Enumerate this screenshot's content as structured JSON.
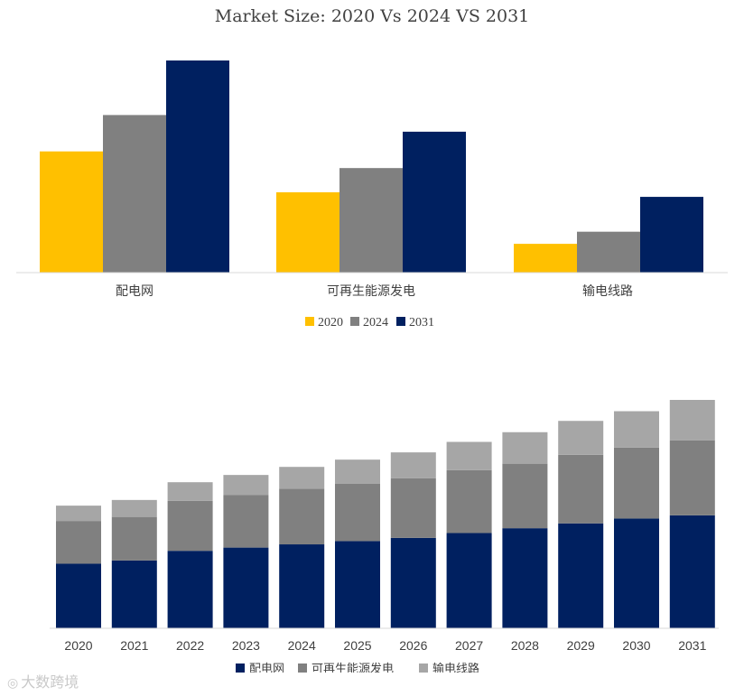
{
  "colors": {
    "yellow": "#FFC000",
    "gray": "#808080",
    "navy": "#002060",
    "lightgray": "#A6A6A6"
  },
  "watermark": {
    "text": "大数跨境",
    "icon": "logo-icon"
  },
  "chart_data": [
    {
      "type": "bar",
      "title": "Market Size: 2020 Vs 2024 VS 2031",
      "categories": [
        "配电网",
        "可再生能源发电",
        "输电线路"
      ],
      "series": [
        {
          "name": "2020",
          "color": "#FFC000",
          "values": [
            40,
            26.5,
            9.5
          ]
        },
        {
          "name": "2024",
          "color": "#808080",
          "values": [
            52,
            34.5,
            13.5
          ]
        },
        {
          "name": "2031",
          "color": "#002060",
          "values": [
            70,
            46.5,
            25
          ]
        }
      ],
      "ylim": [
        0,
        70
      ],
      "legend_position": "bottom",
      "grid": false
    },
    {
      "type": "bar",
      "stacked": true,
      "categories": [
        "2020",
        "2021",
        "2022",
        "2023",
        "2024",
        "2025",
        "2026",
        "2027",
        "2028",
        "2029",
        "2030",
        "2031"
      ],
      "series": [
        {
          "name": "配电网",
          "color": "#002060",
          "values": [
            40,
            42,
            48,
            50,
            52,
            54,
            56,
            59,
            62,
            65,
            68,
            70
          ]
        },
        {
          "name": "可再生能源发电",
          "color": "#808080",
          "values": [
            26.5,
            27,
            31,
            32.5,
            34.5,
            35.5,
            37,
            39,
            40,
            42.5,
            44,
            46.5
          ]
        },
        {
          "name": "输电线路",
          "color": "#A6A6A6",
          "values": [
            9.5,
            10.5,
            11.5,
            12.5,
            13.5,
            15,
            16,
            17.5,
            19.5,
            21,
            22.5,
            25
          ]
        }
      ],
      "ylim": [
        0,
        141.5
      ],
      "legend_position": "bottom",
      "grid": false
    }
  ]
}
